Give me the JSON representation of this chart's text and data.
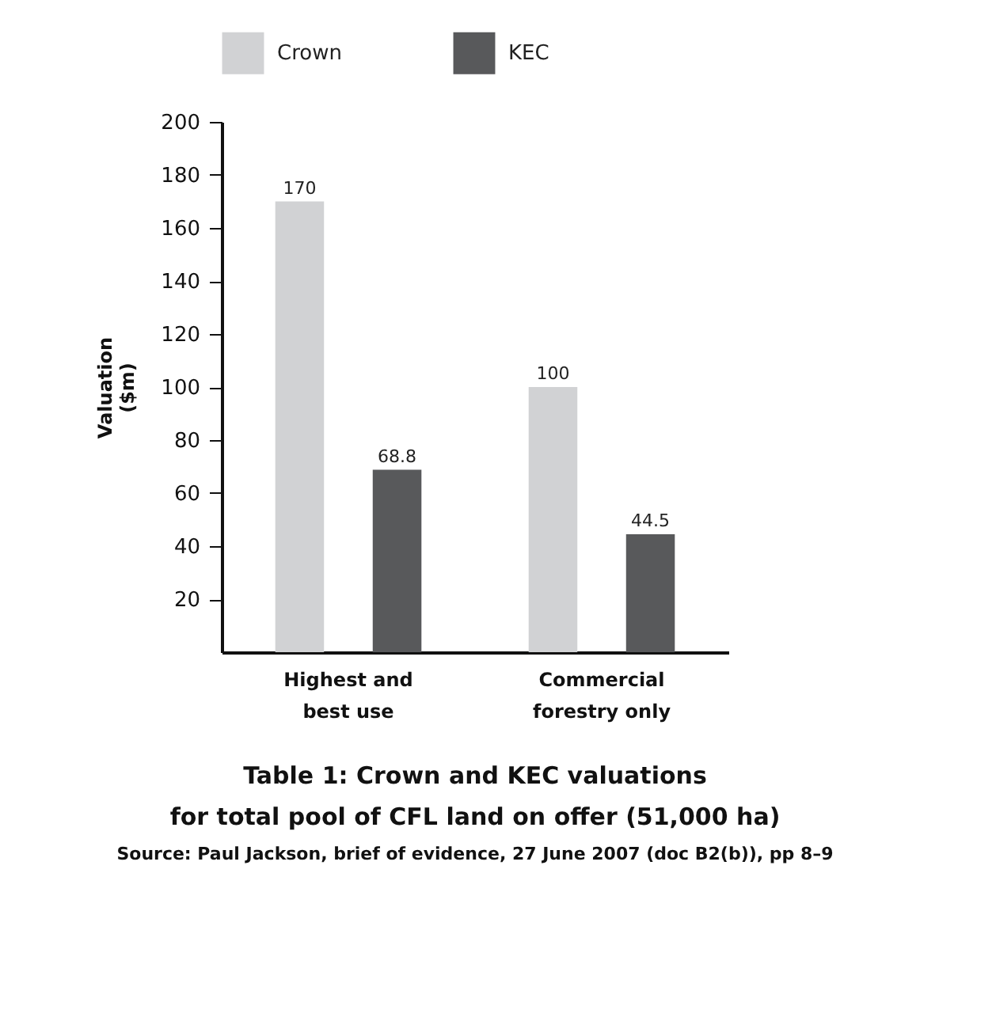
{
  "chart_data": {
    "type": "bar",
    "title": "Table 1: Crown and KEC valuations\nfor total pool of CFL land on offer (51,000 ha)",
    "annotations": [
      "Source: Paul Jackson, brief of evidence, 27 June 2007 (doc B2(b)), pp 8–9"
    ],
    "ylabel": "Valuation\n($m)",
    "categories": [
      "Highest and\nbest use",
      "Commercial\nforestry only"
    ],
    "series": [
      {
        "name": "Crown",
        "color": "#d1d2d4",
        "values": [
          170,
          100
        ]
      },
      {
        "name": "KEC",
        "color": "#58595b",
        "values": [
          68.8,
          44.5
        ]
      }
    ],
    "ylim": [
      0,
      200
    ],
    "yticks": [
      20,
      40,
      60,
      80,
      100,
      120,
      140,
      160,
      180,
      200
    ],
    "data_labels": true,
    "legend": "top",
    "grid": false
  }
}
